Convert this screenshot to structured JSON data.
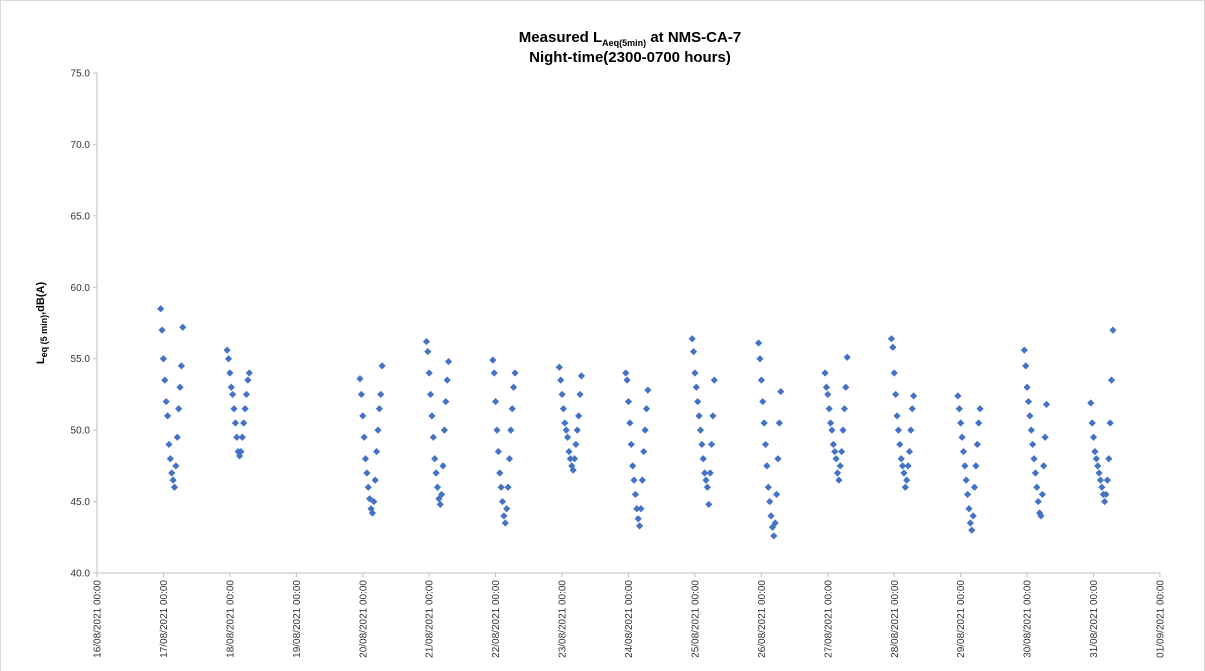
{
  "chart_data": {
    "type": "scatter",
    "title": "Measured L",
    "title_subscript": "Aeq(5min)",
    "title_suffix": " at NMS-CA-7",
    "subtitle": "Night-time(2300-0700 hours)",
    "ylabel": "L",
    "ylabel_subscript": "eq (5 min)",
    "ylabel_suffix": ",dB(A)",
    "color": "#4472c4",
    "ylim": [
      40,
      75
    ],
    "yticks": [
      {
        "value": 40,
        "label": "40.0"
      },
      {
        "value": 45,
        "label": "45.0"
      },
      {
        "value": 50,
        "label": "50.0"
      },
      {
        "value": 55,
        "label": "55.0"
      },
      {
        "value": 60,
        "label": "60.0"
      },
      {
        "value": 65,
        "label": "65.0"
      },
      {
        "value": 70,
        "label": "70.0"
      },
      {
        "value": 75,
        "label": "75.0"
      }
    ],
    "xlim": [
      "16/08/2021 00:00",
      "01/09/2021 00:00"
    ],
    "xticks": [
      "16/08/2021 00:00",
      "17/08/2021 00:00",
      "18/08/2021 00:00",
      "19/08/2021 00:00",
      "20/08/2021 00:00",
      "21/08/2021 00:00",
      "22/08/2021 00:00",
      "23/08/2021 00:00",
      "24/08/2021 00:00",
      "25/08/2021 00:00",
      "26/08/2021 00:00",
      "27/08/2021 00:00",
      "28/08/2021 00:00",
      "29/08/2021 00:00",
      "30/08/2021 00:00",
      "31/08/2021 00:00",
      "01/09/2021 00:00"
    ],
    "x": [
      "16/08/2021 23:00",
      "16/08/2021 23:30",
      "17/08/2021 00:00",
      "17/08/2021 00:30",
      "17/08/2021 01:00",
      "17/08/2021 01:30",
      "17/08/2021 02:00",
      "17/08/2021 02:30",
      "17/08/2021 03:00",
      "17/08/2021 03:30",
      "17/08/2021 04:00",
      "17/08/2021 04:30",
      "17/08/2021 05:00",
      "17/08/2021 05:30",
      "17/08/2021 06:00",
      "17/08/2021 06:30",
      "17/08/2021 07:00",
      "17/08/2021 23:00",
      "17/08/2021 23:30",
      "18/08/2021 00:00",
      "18/08/2021 00:30",
      "18/08/2021 01:00",
      "18/08/2021 01:30",
      "18/08/2021 02:00",
      "18/08/2021 02:30",
      "18/08/2021 03:00",
      "18/08/2021 03:30",
      "18/08/2021 04:00",
      "18/08/2021 04:30",
      "18/08/2021 05:00",
      "18/08/2021 05:30",
      "18/08/2021 06:00",
      "18/08/2021 06:30",
      "18/08/2021 07:00",
      "19/08/2021 23:00",
      "19/08/2021 23:30",
      "20/08/2021 00:00",
      "20/08/2021 00:30",
      "20/08/2021 01:00",
      "20/08/2021 01:30",
      "20/08/2021 02:00",
      "20/08/2021 02:30",
      "20/08/2021 03:00",
      "20/08/2021 03:30",
      "20/08/2021 04:00",
      "20/08/2021 04:30",
      "20/08/2021 05:00",
      "20/08/2021 05:30",
      "20/08/2021 06:00",
      "20/08/2021 06:30",
      "20/08/2021 07:00",
      "20/08/2021 23:00",
      "20/08/2021 23:30",
      "21/08/2021 00:00",
      "21/08/2021 00:30",
      "21/08/2021 01:00",
      "21/08/2021 01:30",
      "21/08/2021 02:00",
      "21/08/2021 02:30",
      "21/08/2021 03:00",
      "21/08/2021 03:30",
      "21/08/2021 04:00",
      "21/08/2021 04:30",
      "21/08/2021 05:00",
      "21/08/2021 05:30",
      "21/08/2021 06:00",
      "21/08/2021 06:30",
      "21/08/2021 07:00",
      "21/08/2021 23:00",
      "21/08/2021 23:30",
      "22/08/2021 00:00",
      "22/08/2021 00:30",
      "22/08/2021 01:00",
      "22/08/2021 01:30",
      "22/08/2021 02:00",
      "22/08/2021 02:30",
      "22/08/2021 03:00",
      "22/08/2021 03:30",
      "22/08/2021 04:00",
      "22/08/2021 04:30",
      "22/08/2021 05:00",
      "22/08/2021 05:30",
      "22/08/2021 06:00",
      "22/08/2021 06:30",
      "22/08/2021 07:00",
      "22/08/2021 23:00",
      "22/08/2021 23:30",
      "23/08/2021 00:00",
      "23/08/2021 00:30",
      "23/08/2021 01:00",
      "23/08/2021 01:30",
      "23/08/2021 02:00",
      "23/08/2021 02:30",
      "23/08/2021 03:00",
      "23/08/2021 03:30",
      "23/08/2021 04:00",
      "23/08/2021 04:30",
      "23/08/2021 05:00",
      "23/08/2021 05:30",
      "23/08/2021 06:00",
      "23/08/2021 06:30",
      "23/08/2021 07:00",
      "23/08/2021 23:00",
      "23/08/2021 23:30",
      "24/08/2021 00:00",
      "24/08/2021 00:30",
      "24/08/2021 01:00",
      "24/08/2021 01:30",
      "24/08/2021 02:00",
      "24/08/2021 02:30",
      "24/08/2021 03:00",
      "24/08/2021 03:30",
      "24/08/2021 04:00",
      "24/08/2021 04:30",
      "24/08/2021 05:00",
      "24/08/2021 05:30",
      "24/08/2021 06:00",
      "24/08/2021 06:30",
      "24/08/2021 07:00",
      "24/08/2021 23:00",
      "24/08/2021 23:30",
      "25/08/2021 00:00",
      "25/08/2021 00:30",
      "25/08/2021 01:00",
      "25/08/2021 01:30",
      "25/08/2021 02:00",
      "25/08/2021 02:30",
      "25/08/2021 03:00",
      "25/08/2021 03:30",
      "25/08/2021 04:00",
      "25/08/2021 04:30",
      "25/08/2021 05:00",
      "25/08/2021 05:30",
      "25/08/2021 06:00",
      "25/08/2021 06:30",
      "25/08/2021 07:00",
      "25/08/2021 23:00",
      "25/08/2021 23:30",
      "26/08/2021 00:00",
      "26/08/2021 00:30",
      "26/08/2021 01:00",
      "26/08/2021 01:30",
      "26/08/2021 02:00",
      "26/08/2021 02:30",
      "26/08/2021 03:00",
      "26/08/2021 03:30",
      "26/08/2021 04:00",
      "26/08/2021 04:30",
      "26/08/2021 05:00",
      "26/08/2021 05:30",
      "26/08/2021 06:00",
      "26/08/2021 06:30",
      "26/08/2021 07:00",
      "26/08/2021 23:00",
      "26/08/2021 23:30",
      "27/08/2021 00:00",
      "27/08/2021 00:30",
      "27/08/2021 01:00",
      "27/08/2021 01:30",
      "27/08/2021 02:00",
      "27/08/2021 02:30",
      "27/08/2021 03:00",
      "27/08/2021 03:30",
      "27/08/2021 04:00",
      "27/08/2021 04:30",
      "27/08/2021 05:00",
      "27/08/2021 05:30",
      "27/08/2021 06:00",
      "27/08/2021 06:30",
      "27/08/2021 07:00",
      "27/08/2021 23:00",
      "27/08/2021 23:30",
      "28/08/2021 00:00",
      "28/08/2021 00:30",
      "28/08/2021 01:00",
      "28/08/2021 01:30",
      "28/08/2021 02:00",
      "28/08/2021 02:30",
      "28/08/2021 03:00",
      "28/08/2021 03:30",
      "28/08/2021 04:00",
      "28/08/2021 04:30",
      "28/08/2021 05:00",
      "28/08/2021 05:30",
      "28/08/2021 06:00",
      "28/08/2021 06:30",
      "28/08/2021 07:00",
      "28/08/2021 23:00",
      "28/08/2021 23:30",
      "29/08/2021 00:00",
      "29/08/2021 00:30",
      "29/08/2021 01:00",
      "29/08/2021 01:30",
      "29/08/2021 02:00",
      "29/08/2021 02:30",
      "29/08/2021 03:00",
      "29/08/2021 03:30",
      "29/08/2021 04:00",
      "29/08/2021 04:30",
      "29/08/2021 05:00",
      "29/08/2021 05:30",
      "29/08/2021 06:00",
      "29/08/2021 06:30",
      "29/08/2021 07:00",
      "29/08/2021 23:00",
      "29/08/2021 23:30",
      "30/08/2021 00:00",
      "30/08/2021 00:30",
      "30/08/2021 01:00",
      "30/08/2021 01:30",
      "30/08/2021 02:00",
      "30/08/2021 02:30",
      "30/08/2021 03:00",
      "30/08/2021 03:30",
      "30/08/2021 04:00",
      "30/08/2021 04:30",
      "30/08/2021 05:00",
      "30/08/2021 05:30",
      "30/08/2021 06:00",
      "30/08/2021 06:30",
      "30/08/2021 07:00",
      "30/08/2021 23:00",
      "30/08/2021 23:30",
      "31/08/2021 00:00",
      "31/08/2021 00:30",
      "31/08/2021 01:00",
      "31/08/2021 01:30",
      "31/08/2021 02:00",
      "31/08/2021 02:30",
      "31/08/2021 03:00",
      "31/08/2021 03:30",
      "31/08/2021 04:00",
      "31/08/2021 04:30",
      "31/08/2021 05:00",
      "31/08/2021 05:30",
      "31/08/2021 06:00",
      "31/08/2021 06:30",
      "31/08/2021 07:00"
    ],
    "values": [
      58.5,
      57.0,
      55.0,
      53.5,
      52.0,
      51.0,
      49.0,
      48.0,
      47.0,
      46.5,
      46.0,
      47.5,
      49.5,
      51.5,
      53.0,
      54.5,
      57.2,
      55.6,
      55.0,
      54.0,
      53.0,
      52.5,
      51.5,
      50.5,
      49.5,
      48.5,
      48.2,
      48.5,
      49.5,
      50.5,
      51.5,
      52.5,
      53.5,
      54.0,
      53.6,
      52.5,
      51.0,
      49.5,
      48.0,
      47.0,
      46.0,
      45.2,
      44.5,
      44.2,
      45.0,
      46.5,
      48.5,
      50.0,
      51.5,
      52.5,
      54.5,
      56.2,
      55.5,
      54.0,
      52.5,
      51.0,
      49.5,
      48.0,
      47.0,
      46.0,
      45.2,
      44.8,
      45.5,
      47.5,
      50.0,
      52.0,
      53.5,
      54.8,
      54.9,
      54.0,
      52.0,
      50.0,
      48.5,
      47.0,
      46.0,
      45.0,
      44.0,
      43.5,
      44.5,
      46.0,
      48.0,
      50.0,
      51.5,
      53.0,
      54.0,
      54.4,
      53.5,
      52.5,
      51.5,
      50.5,
      50.0,
      49.5,
      48.5,
      48.0,
      47.5,
      47.2,
      48.0,
      49.0,
      50.0,
      51.0,
      52.5,
      53.8,
      54.0,
      53.5,
      52.0,
      50.5,
      49.0,
      47.5,
      46.5,
      45.5,
      44.5,
      43.8,
      43.3,
      44.5,
      46.5,
      48.5,
      50.0,
      51.5,
      52.8,
      56.4,
      55.5,
      54.0,
      53.0,
      52.0,
      51.0,
      50.0,
      49.0,
      48.0,
      47.0,
      46.5,
      46.0,
      44.8,
      47.0,
      49.0,
      51.0,
      53.5,
      56.1,
      55.0,
      53.5,
      52.0,
      50.5,
      49.0,
      47.5,
      46.0,
      45.0,
      44.0,
      43.2,
      42.6,
      43.5,
      45.5,
      48.0,
      50.5,
      52.7,
      54.0,
      53.0,
      52.5,
      51.5,
      50.5,
      50.0,
      49.0,
      48.5,
      48.0,
      47.0,
      46.5,
      47.5,
      48.5,
      50.0,
      51.5,
      53.0,
      55.1,
      56.4,
      55.8,
      54.0,
      52.5,
      51.0,
      50.0,
      49.0,
      48.0,
      47.5,
      47.0,
      46.0,
      46.5,
      47.5,
      48.5,
      50.0,
      51.5,
      52.4,
      52.4,
      51.5,
      50.5,
      49.5,
      48.5,
      47.5,
      46.5,
      45.5,
      44.5,
      43.5,
      43.0,
      44.0,
      46.0,
      47.5,
      49.0,
      50.5,
      51.5,
      55.6,
      54.5,
      53.0,
      52.0,
      51.0,
      50.0,
      49.0,
      48.0,
      47.0,
      46.0,
      45.0,
      44.2,
      44.0,
      45.5,
      47.5,
      49.5,
      51.8,
      51.9,
      50.5,
      49.5,
      48.5,
      48.0,
      47.5,
      47.0,
      46.5,
      46.0,
      45.5,
      45.0,
      45.5,
      46.5,
      48.0,
      50.5,
      53.5,
      57.0
    ]
  }
}
